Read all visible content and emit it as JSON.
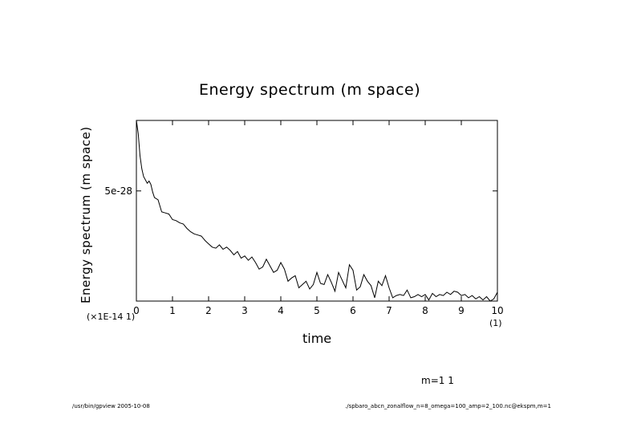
{
  "chart_data": {
    "type": "line",
    "title": "Energy spectrum (m space)",
    "xlabel": "time",
    "ylabel": "Energy spectrum (m space)",
    "x_scale_label": "(1)",
    "y_scale_label": "(×1E-14 1)",
    "xlim": [
      0,
      10
    ],
    "ylim": [
      0,
      8.2e-28
    ],
    "xticks": [
      "0",
      "1",
      "2",
      "3",
      "4",
      "5",
      "6",
      "7",
      "8",
      "9",
      "10"
    ],
    "yticks": [
      {
        "value": 5e-28,
        "label": "5e-28"
      }
    ],
    "grid": false,
    "series": [
      {
        "x": [
          0,
          0.05,
          0.1,
          0.15,
          0.2,
          0.25,
          0.3,
          0.35,
          0.4,
          0.45,
          0.5,
          0.6,
          0.7,
          0.8,
          0.9,
          1.0,
          1.1,
          1.2,
          1.3,
          1.4,
          1.5,
          1.6,
          1.7,
          1.8,
          1.9,
          2.0,
          2.1,
          2.2,
          2.3,
          2.4,
          2.5,
          2.6,
          2.7,
          2.8,
          2.9,
          3.0,
          3.1,
          3.2,
          3.3,
          3.4,
          3.5,
          3.6,
          3.7,
          3.8,
          3.9,
          4.0,
          4.1,
          4.2,
          4.3,
          4.4,
          4.5,
          4.6,
          4.7,
          4.8,
          4.9,
          5.0,
          5.1,
          5.2,
          5.3,
          5.4,
          5.5,
          5.6,
          5.7,
          5.8,
          5.9,
          6.0,
          6.1,
          6.2,
          6.3,
          6.4,
          6.5,
          6.6,
          6.7,
          6.8,
          6.9,
          7.0,
          7.1,
          7.2,
          7.3,
          7.4,
          7.5,
          7.6,
          7.7,
          7.8,
          7.9,
          8.0,
          8.1,
          8.2,
          8.3,
          8.4,
          8.5,
          8.6,
          8.7,
          8.8,
          8.9,
          9.0,
          9.1,
          9.2,
          9.3,
          9.4,
          9.5,
          9.6,
          9.7,
          9.8,
          9.9,
          10.0
        ],
        "y": [
          8.2e-28,
          7.6e-28,
          6.6e-28,
          6e-28,
          5.65e-28,
          5.5e-28,
          5.35e-28,
          5.45e-28,
          5.3e-28,
          4.95e-28,
          4.7e-28,
          4.6e-28,
          4.05e-28,
          4e-28,
          3.95e-28,
          3.7e-28,
          3.65e-28,
          3.55e-28,
          3.5e-28,
          3.3e-28,
          3.15e-28,
          3.05e-28,
          3e-28,
          2.95e-28,
          2.75e-28,
          2.6e-28,
          2.45e-28,
          2.4e-28,
          2.55e-28,
          2.35e-28,
          2.45e-28,
          2.3e-28,
          2.1e-28,
          2.25e-28,
          1.95e-28,
          2.05e-28,
          1.85e-28,
          2e-28,
          1.75e-28,
          1.45e-28,
          1.55e-28,
          1.9e-28,
          1.6e-28,
          1.3e-28,
          1.4e-28,
          1.75e-28,
          1.45e-28,
          9e-29,
          1.05e-28,
          1.15e-28,
          6e-29,
          7.5e-29,
          9e-29,
          5.5e-29,
          7.5e-29,
          1.3e-28,
          8e-29,
          7.5e-29,
          1.2e-28,
          8.5e-29,
          4.5e-29,
          1.3e-28,
          9.5e-29,
          6e-29,
          1.65e-28,
          1.4e-28,
          5e-29,
          6.5e-29,
          1.2e-28,
          9e-29,
          7e-29,
          1.5e-29,
          9e-29,
          7e-29,
          1.15e-28,
          6e-29,
          1.5e-29,
          2.5e-29,
          3e-29,
          2.5e-29,
          5e-29,
          1.5e-29,
          2e-29,
          3e-29,
          2e-29,
          3e-29,
          5e-30,
          3.5e-29,
          2e-29,
          3e-29,
          2.5e-29,
          4e-29,
          3e-29,
          4.5e-29,
          4e-29,
          2.5e-29,
          3e-29,
          1.5e-29,
          2.5e-29,
          1e-29,
          2e-29,
          5e-30,
          2e-29,
          0.0,
          1e-29,
          4e-29
        ]
      }
    ],
    "annotations": [
      "m=1 1",
      "/usr/bin/gpview 2005-10-08",
      "./spbaro_abcn_zonalflow_n=8_omega=100_amp=2_100.nc@ekspm,m=1"
    ]
  }
}
